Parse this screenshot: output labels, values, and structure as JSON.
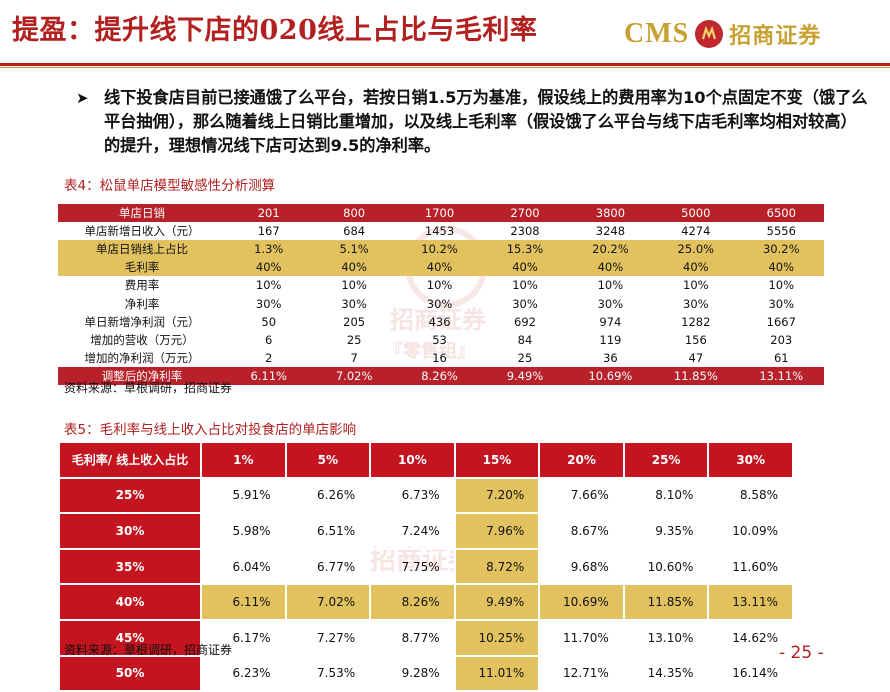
{
  "header": {
    "title": "提盈：提升线下店的020线上占比与毛利率",
    "logo_latin": "CMS",
    "logo_chinese": "招商证券"
  },
  "bullet": {
    "text": "线下投食店目前已接通饿了么平台，若按日销1.5万为基准，假设线上的费用率为10个点固定不变（饿了么平台抽佣），那么随着线上日销比重增加，以及线上毛利率（假设饿了么平台与线下店毛利率均相对较高）的提升，理想情况线下店可达到9.5的净利率。"
  },
  "table4": {
    "caption": "表4：松鼠单店模型敏感性分析测算",
    "source": "资料来源：草根调研，招商证券",
    "rows": [
      {
        "label": "单店日销",
        "values": [
          "201",
          "800",
          "1700",
          "2700",
          "3800",
          "5000",
          "6500"
        ],
        "style": "red"
      },
      {
        "label": "单店新增日收入（元）",
        "values": [
          "167",
          "684",
          "1453",
          "2308",
          "3248",
          "4274",
          "5556"
        ],
        "style": "plain"
      },
      {
        "label": "单店日销线上占比",
        "values": [
          "1.3%",
          "5.1%",
          "10.2%",
          "15.3%",
          "20.2%",
          "25.0%",
          "30.2%"
        ],
        "style": "gold"
      },
      {
        "label": "毛利率",
        "values": [
          "40%",
          "40%",
          "40%",
          "40%",
          "40%",
          "40%",
          "40%"
        ],
        "style": "gold"
      },
      {
        "label": "费用率",
        "values": [
          "10%",
          "10%",
          "10%",
          "10%",
          "10%",
          "10%",
          "10%"
        ],
        "style": "plain"
      },
      {
        "label": "净利率",
        "values": [
          "30%",
          "30%",
          "30%",
          "30%",
          "30%",
          "30%",
          "30%"
        ],
        "style": "plain"
      },
      {
        "label": "单日新增净利润（元）",
        "values": [
          "50",
          "205",
          "436",
          "692",
          "974",
          "1282",
          "1667"
        ],
        "style": "plain"
      },
      {
        "label": "增加的营收（万元）",
        "values": [
          "6",
          "25",
          "53",
          "84",
          "119",
          "156",
          "203"
        ],
        "style": "plain"
      },
      {
        "label": "增加的净利润（万元）",
        "values": [
          "2",
          "7",
          "16",
          "25",
          "36",
          "47",
          "61"
        ],
        "style": "plain"
      },
      {
        "label": "调整后的净利率",
        "values": [
          "6.11%",
          "7.02%",
          "8.26%",
          "9.49%",
          "10.69%",
          "11.85%",
          "13.11%"
        ],
        "style": "red"
      }
    ]
  },
  "table5": {
    "caption": "表5：毛利率与线上收入占比对投食店的单店影响",
    "source": "资料来源：草根调研，招商证券",
    "corner": "毛利率/ 线上收入占比",
    "columns": [
      "1%",
      "5%",
      "10%",
      "15%",
      "20%",
      "25%",
      "30%"
    ],
    "highlight_column": 3,
    "highlight_row": 3,
    "rows": [
      {
        "label": "25%",
        "values": [
          "5.91%",
          "6.26%",
          "6.73%",
          "7.20%",
          "7.66%",
          "8.10%",
          "8.58%"
        ]
      },
      {
        "label": "30%",
        "values": [
          "5.98%",
          "6.51%",
          "7.24%",
          "7.96%",
          "8.67%",
          "9.35%",
          "10.09%"
        ]
      },
      {
        "label": "35%",
        "values": [
          "6.04%",
          "6.77%",
          "7.75%",
          "8.72%",
          "9.68%",
          "10.60%",
          "11.60%"
        ]
      },
      {
        "label": "40%",
        "values": [
          "6.11%",
          "7.02%",
          "8.26%",
          "9.49%",
          "10.69%",
          "11.85%",
          "13.11%"
        ]
      },
      {
        "label": "45%",
        "values": [
          "6.17%",
          "7.27%",
          "8.77%",
          "10.25%",
          "11.70%",
          "13.10%",
          "14.62%"
        ]
      },
      {
        "label": "50%",
        "values": [
          "6.23%",
          "7.53%",
          "9.28%",
          "11.01%",
          "12.71%",
          "14.35%",
          "16.14%"
        ]
      }
    ]
  },
  "watermark": {
    "line1": "招商证券",
    "line2": "『零售组』"
  },
  "footer": {
    "page_number": "- 25 -"
  },
  "colors": {
    "brand_red": "#b22020",
    "table_red": "#c4141f",
    "gold": "#e2c25e",
    "logo_gold": "#c9a132"
  }
}
